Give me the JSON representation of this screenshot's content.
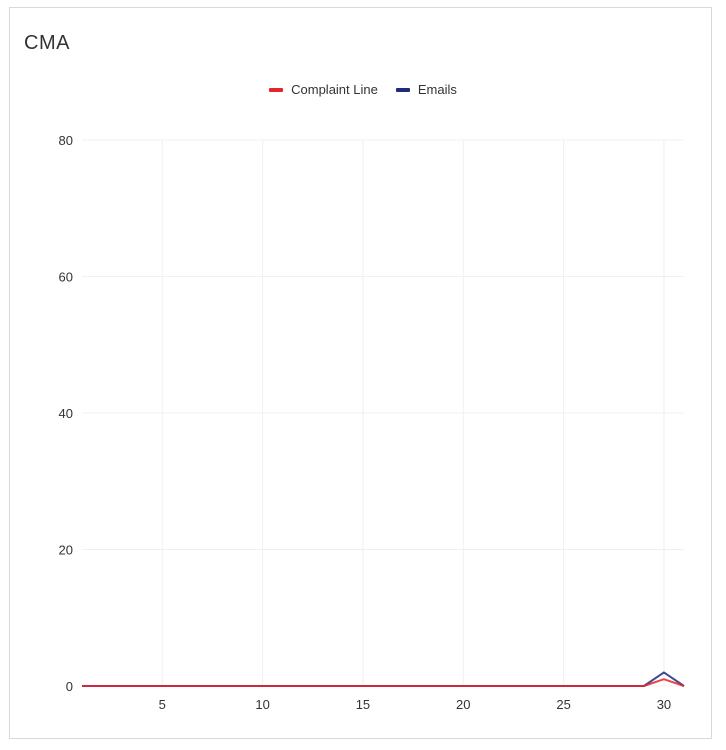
{
  "chart_data": {
    "type": "line",
    "title": "CMA",
    "xlabel": "",
    "ylabel": "",
    "x": [
      1,
      2,
      3,
      4,
      5,
      6,
      7,
      8,
      9,
      10,
      11,
      12,
      13,
      14,
      15,
      16,
      17,
      18,
      19,
      20,
      21,
      22,
      23,
      24,
      25,
      26,
      27,
      28,
      29,
      30,
      31
    ],
    "xlim": [
      1,
      31
    ],
    "ylim": [
      0,
      80
    ],
    "x_ticks": [
      "5",
      "10",
      "15",
      "20",
      "25",
      "30"
    ],
    "y_ticks": [
      "0",
      "20",
      "40",
      "60",
      "80"
    ],
    "grid": true,
    "legend_position": "top-center",
    "series": [
      {
        "name": "Complaint Line",
        "color": "#e3262b",
        "values": [
          0,
          0,
          0,
          0,
          0,
          0,
          0,
          0,
          0,
          0,
          0,
          0,
          0,
          0,
          0,
          0,
          0,
          0,
          0,
          0,
          0,
          0,
          0,
          0,
          0,
          0,
          0,
          0,
          0,
          1,
          0
        ]
      },
      {
        "name": "Emails",
        "color": "#1f2a7a",
        "values": [
          0,
          0,
          0,
          0,
          0,
          0,
          0,
          0,
          0,
          0,
          0,
          0,
          0,
          0,
          0,
          0,
          0,
          0,
          0,
          0,
          0,
          0,
          0,
          0,
          0,
          0,
          0,
          0,
          0,
          2,
          0
        ]
      }
    ]
  }
}
